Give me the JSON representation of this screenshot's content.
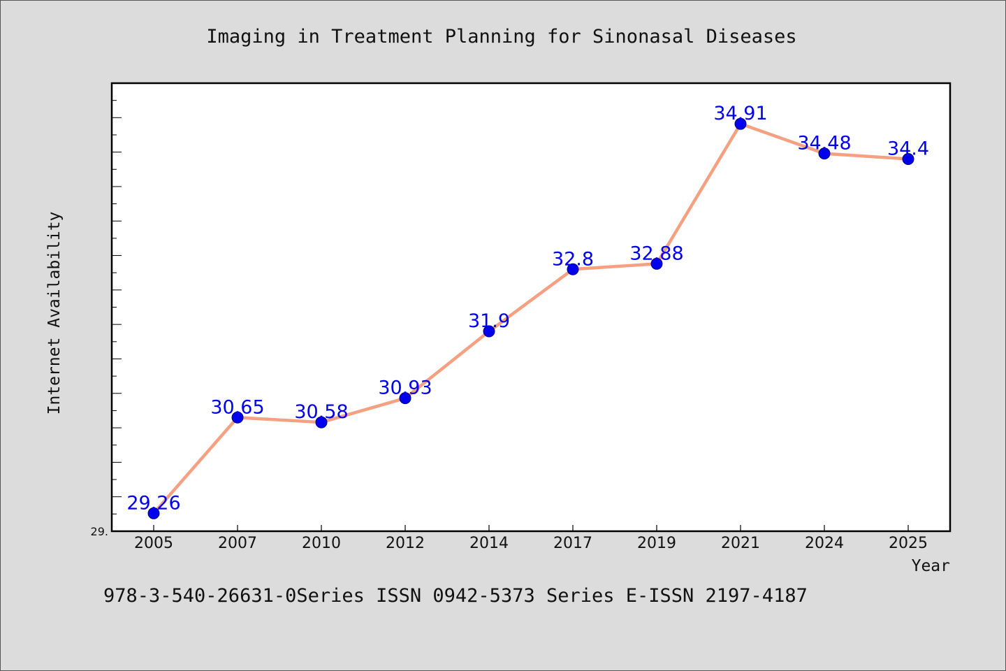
{
  "chart_data": {
    "type": "line",
    "title": "Imaging in Treatment Planning for Sinonasal Diseases",
    "xlabel": "Year",
    "ylabel": "Internet Availability",
    "categories": [
      "2005",
      "2007",
      "2010",
      "2012",
      "2014",
      "2017",
      "2019",
      "2021",
      "2024",
      "2025"
    ],
    "series": [
      {
        "values": [
          29.26,
          30.65,
          30.58,
          30.93,
          31.9,
          32.8,
          32.88,
          34.91,
          34.48,
          34.4
        ],
        "data_labels": [
          "29.26",
          "30.65",
          "30.58",
          "30.93",
          "31.9",
          "32.8",
          "32.88",
          "34.91",
          "34.48",
          "34.4"
        ]
      }
    ],
    "ylim": [
      29.0,
      35.5
    ],
    "y_tick_label": "29.",
    "grid": false,
    "legend": "none",
    "colors": {
      "line": "#f4a081",
      "marker": "#0000ee",
      "data_label": "#0000ee",
      "plot_background": "#ffffff",
      "figure_background": "#dcdcdc"
    }
  },
  "footer_text": "978-3-540-26631-0Series ISSN 0942-5373 Series E-ISSN 2197-4187"
}
